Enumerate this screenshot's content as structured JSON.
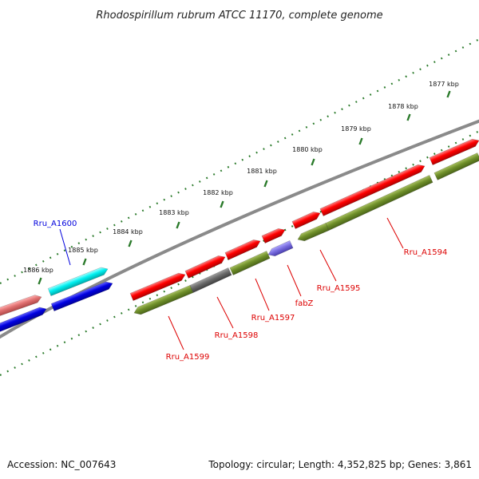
{
  "title": "Rhodospirillum rubrum ATCC 11170, complete genome",
  "accession": "Accession: NC_007643",
  "summary": "Topology: circular; Length: 4,352,825 bp; Genes: 3,861",
  "colors": {
    "backbone": "#888888",
    "tick": "#2a7a2a",
    "cds_red": "#ee0000",
    "cds_green": "#6f8f2a",
    "cds_blue": "#0a0ad0",
    "cds_cyan": "#00e8e8",
    "cds_gray": "#6a6a6a",
    "cds_violet": "#7a6ee0",
    "cds_pink": "#e07070",
    "label_red": "#dd0000",
    "label_blue": "#0000dd"
  },
  "ticks": [
    {
      "kbp": 1877,
      "label": "1877 kbp"
    },
    {
      "kbp": 1878,
      "label": "1878 kbp"
    },
    {
      "kbp": 1879,
      "label": "1879 kbp"
    },
    {
      "kbp": 1880,
      "label": "1880 kbp"
    },
    {
      "kbp": 1881,
      "label": "1881 kbp"
    },
    {
      "kbp": 1882,
      "label": "1882 kbp"
    },
    {
      "kbp": 1883,
      "label": "1883 kbp"
    },
    {
      "kbp": 1884,
      "label": "1884 kbp"
    },
    {
      "kbp": 1885,
      "label": "1885 kbp"
    },
    {
      "kbp": 1886,
      "label": "1886 kbp"
    }
  ],
  "gene_labels": [
    {
      "text": "Rru_A1600",
      "color": "label_blue"
    },
    {
      "text": "Rru_A1599",
      "color": "label_red"
    },
    {
      "text": "Rru_A1598",
      "color": "label_red"
    },
    {
      "text": "Rru_A1597",
      "color": "label_red"
    },
    {
      "text": "fabZ",
      "color": "label_red"
    },
    {
      "text": "Rru_A1595",
      "color": "label_red"
    },
    {
      "text": "Rru_A1594",
      "color": "label_red"
    }
  ]
}
